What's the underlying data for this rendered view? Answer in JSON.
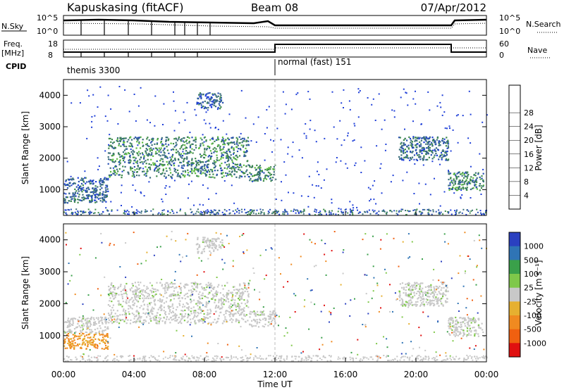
{
  "header": {
    "station": "Kapuskasing (fitACF)",
    "beam": "Beam 08",
    "date": "07/Apr/2012"
  },
  "panel_labels": {
    "nsky": "N.Sky",
    "freq_line1": "Freq.",
    "freq_line2": "[MHz]",
    "cpid": "CPID",
    "nsearch": "N.Search",
    "nave": "Nave"
  },
  "cpid_segments": [
    {
      "label": "themis 3300",
      "start_hour": 0,
      "end_hour": 12
    },
    {
      "label": "normal (fast) 151",
      "start_hour": 12,
      "end_hour": 24
    }
  ],
  "nsky_axis": {
    "left_ticks": [
      "10^5",
      "10^0"
    ],
    "right_ticks": [
      "10^5",
      "10^0"
    ]
  },
  "freq_axis": {
    "left_ticks": [
      "18",
      "8"
    ],
    "right_ticks": [
      "60",
      "0"
    ]
  },
  "colors": {
    "power": [
      "#1f3fd8",
      "#2a52b0",
      "#3a6e7a",
      "#3f8b4c",
      "#5fbf3f",
      "#e3c53a",
      "#f0a030",
      "#f07020",
      "#e02010"
    ],
    "velocity": [
      "#2a40c0",
      "#2f74b5",
      "#3aa04a",
      "#7fc84a",
      "#c8c8c8",
      "#e6b030",
      "#f08a20",
      "#f06010",
      "#e01010"
    ]
  },
  "chart_data": [
    {
      "type": "heatmap",
      "title": "Power",
      "xlabel": "",
      "ylabel": "Slant Range [km]",
      "xlim": [
        0,
        24
      ],
      "ylim": [
        180,
        4500
      ],
      "yticks": [
        1000,
        2000,
        3000,
        4000
      ],
      "colorbar": {
        "label": "Power [dB]",
        "ticks": [
          4,
          8,
          12,
          16,
          20,
          24,
          28
        ],
        "range": [
          0,
          30
        ]
      },
      "series": [
        {
          "x_range": [
            0.0,
            2.5
          ],
          "y_range": [
            600,
            1400
          ],
          "value": 5
        },
        {
          "x_range": [
            2.5,
            10.5
          ],
          "y_range": [
            1400,
            2700
          ],
          "value": 8
        },
        {
          "x_range": [
            7.5,
            9.0
          ],
          "y_range": [
            3600,
            4100
          ],
          "value": 4
        },
        {
          "x_range": [
            10.5,
            12.0
          ],
          "y_range": [
            1300,
            1800
          ],
          "value": 8
        },
        {
          "x_range": [
            19.0,
            21.8
          ],
          "y_range": [
            1950,
            2700
          ],
          "value": 5
        },
        {
          "x_range": [
            21.8,
            23.8
          ],
          "y_range": [
            1000,
            1600
          ],
          "value": 8
        }
      ]
    },
    {
      "type": "heatmap",
      "title": "Velocity",
      "xlabel": "Time UT",
      "ylabel": "Slant Range [km]",
      "xlim": [
        0,
        24
      ],
      "ylim": [
        180,
        4500
      ],
      "xticks": [
        "00:00",
        "04:00",
        "08:00",
        "12:00",
        "16:00",
        "20:00",
        "00:00"
      ],
      "yticks": [
        1000,
        2000,
        3000,
        4000
      ],
      "colorbar": {
        "label": "Velocity [m s⁻¹]",
        "ticks": [
          1000,
          500,
          100,
          25,
          -25,
          -100,
          -500,
          -1000
        ]
      },
      "series": [
        {
          "x_range": [
            0.0,
            2.5
          ],
          "y_range": [
            600,
            1100
          ],
          "value": -300
        },
        {
          "x_range": [
            0.0,
            2.5
          ],
          "y_range": [
            1100,
            1600
          ],
          "value": 0
        },
        {
          "x_range": [
            2.5,
            10.5
          ],
          "y_range": [
            1400,
            2700
          ],
          "value": 0
        },
        {
          "x_range": [
            7.5,
            9.0
          ],
          "y_range": [
            3600,
            4100
          ],
          "value": 0
        },
        {
          "x_range": [
            10.5,
            12.0
          ],
          "y_range": [
            1300,
            1800
          ],
          "value": 0
        },
        {
          "x_range": [
            19.0,
            21.8
          ],
          "y_range": [
            1950,
            2700
          ],
          "value": 0
        },
        {
          "x_range": [
            21.8,
            23.8
          ],
          "y_range": [
            1000,
            1600
          ],
          "value": 0
        }
      ]
    }
  ]
}
